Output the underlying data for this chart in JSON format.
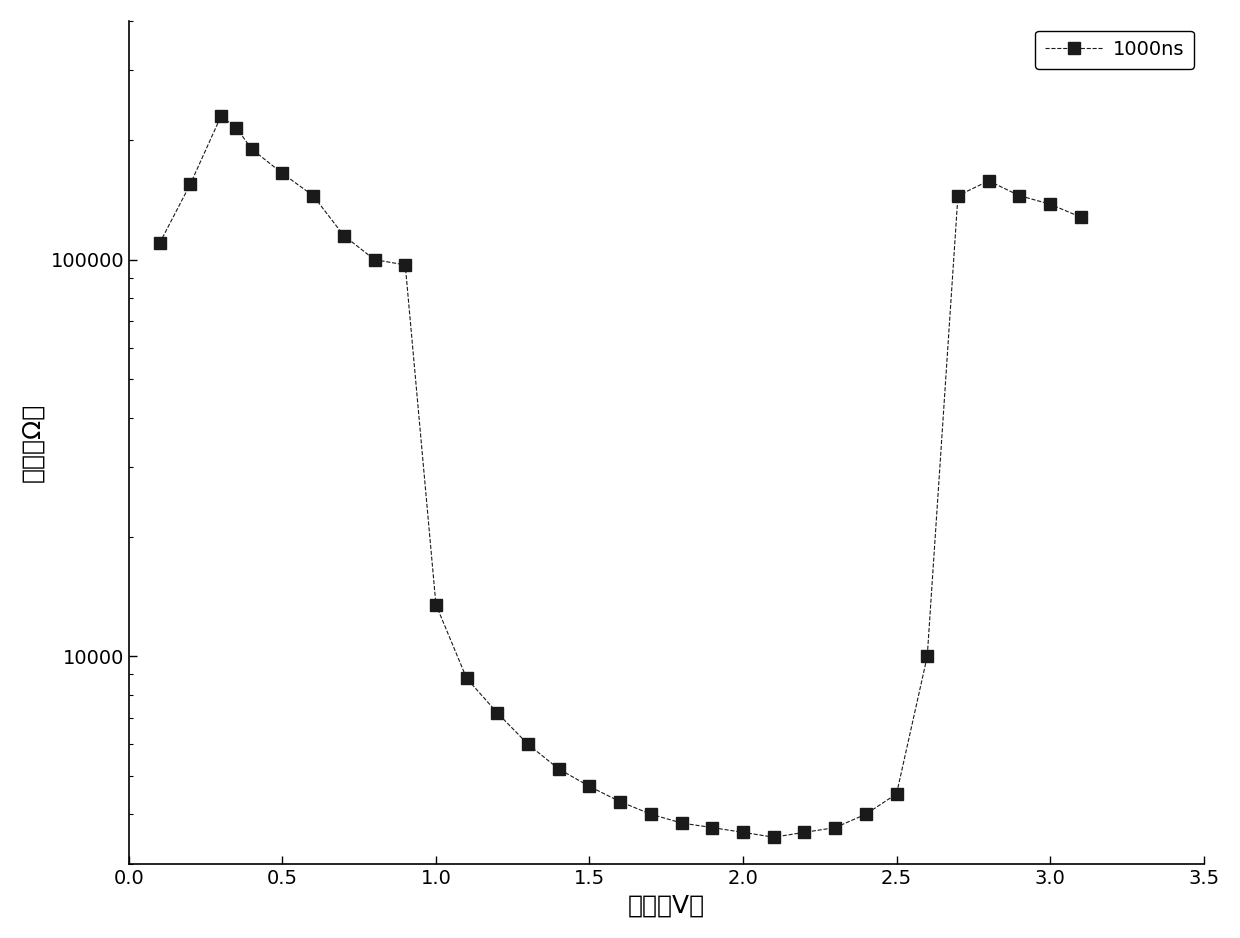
{
  "x": [
    0.1,
    0.2,
    0.3,
    0.35,
    0.4,
    0.5,
    0.6,
    0.7,
    0.8,
    0.9,
    1.0,
    1.1,
    1.2,
    1.3,
    1.4,
    1.5,
    1.6,
    1.7,
    1.8,
    1.9,
    2.0,
    2.1,
    2.2,
    2.3,
    2.4,
    2.5,
    2.6,
    2.7,
    2.8,
    2.9,
    3.0,
    3.1
  ],
  "y": [
    110000,
    155000,
    230000,
    215000,
    190000,
    165000,
    145000,
    115000,
    100000,
    97000,
    13500,
    8800,
    7200,
    6000,
    5200,
    4700,
    4300,
    4000,
    3800,
    3700,
    3600,
    3500,
    3600,
    3700,
    4000,
    4500,
    10000,
    145000,
    158000,
    145000,
    138000,
    128000
  ],
  "color": "#1a1a1a",
  "marker": "s",
  "markersize": 8,
  "linestyle": "--",
  "linewidth": 0.8,
  "legend_label": "1000ns",
  "xlabel": "电压（V）",
  "ylabel": "电阵（Ω）",
  "xlim": [
    0.0,
    3.5
  ],
  "xticks": [
    0.0,
    0.5,
    1.0,
    1.5,
    2.0,
    2.5,
    3.0,
    3.5
  ],
  "ylim_log": [
    3000,
    400000
  ],
  "background_color": "#ffffff",
  "xlabel_fontsize": 18,
  "ylabel_fontsize": 18,
  "tick_fontsize": 14,
  "legend_fontsize": 14
}
